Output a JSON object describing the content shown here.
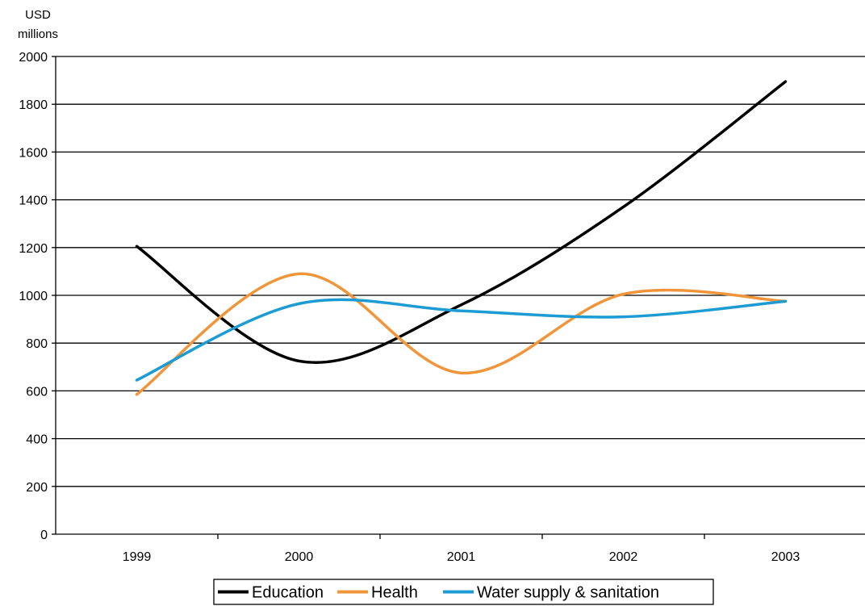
{
  "chart_data": {
    "type": "line",
    "ylabel_lines": [
      "USD",
      "millions"
    ],
    "categories": [
      "1999",
      "2000",
      "2001",
      "2002",
      "2003"
    ],
    "ylim": [
      0,
      2000
    ],
    "y_ticks": [
      "0",
      "200",
      "400",
      "600",
      "800",
      "1000",
      "1200",
      "1400",
      "1600",
      "1800",
      "2000"
    ],
    "grid": true,
    "legend_position": "bottom",
    "series": [
      {
        "name": "Education",
        "color": "#000000",
        "values": [
          1205,
          725,
          960,
          1370,
          1895
        ]
      },
      {
        "name": "Health",
        "color": "#f0953a",
        "values": [
          585,
          1090,
          675,
          1005,
          975
        ]
      },
      {
        "name": "Water supply & sanitation",
        "color": "#1c9cd3",
        "values": [
          645,
          965,
          935,
          910,
          975
        ]
      }
    ]
  }
}
